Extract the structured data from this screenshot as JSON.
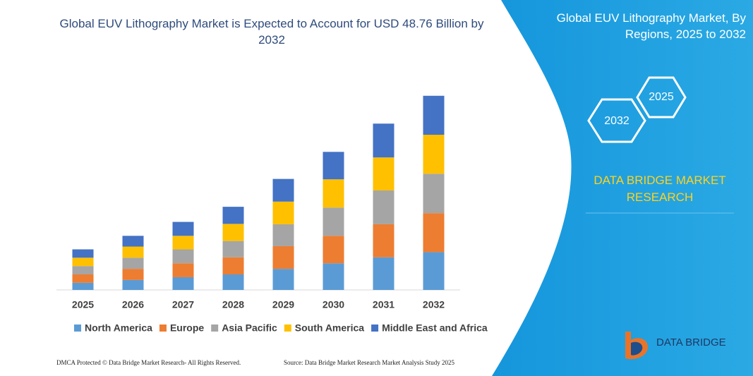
{
  "chart_data": {
    "type": "stacked-bar",
    "title": "Global EUV Lithography Market is Expected to Account for USD 48.76 Billion by 2032",
    "categories": [
      "2025",
      "2026",
      "2027",
      "2028",
      "2029",
      "2030",
      "2031",
      "2032"
    ],
    "series": [
      {
        "name": "North America",
        "color": "#5b9bd5",
        "values": [
          1.8,
          2.5,
          3.2,
          3.9,
          5.3,
          6.7,
          8.2,
          9.5
        ]
      },
      {
        "name": "Europe",
        "color": "#ed7d31",
        "values": [
          2.1,
          2.8,
          3.5,
          4.3,
          5.7,
          6.9,
          8.3,
          9.8
        ]
      },
      {
        "name": "Asia Pacific",
        "color": "#a5a5a5",
        "values": [
          2.1,
          2.8,
          3.5,
          4.1,
          5.5,
          7.1,
          8.5,
          9.9
        ]
      },
      {
        "name": "South America",
        "color": "#ffc000",
        "values": [
          2.1,
          2.8,
          3.4,
          4.3,
          5.7,
          7.1,
          8.3,
          9.8
        ]
      },
      {
        "name": "Middle East and Africa",
        "color": "#4472c4",
        "values": [
          2.1,
          2.7,
          3.5,
          4.3,
          5.7,
          6.9,
          8.5,
          9.8
        ]
      }
    ],
    "ylim": [
      0,
      50
    ],
    "legend": "bottom"
  },
  "panel": {
    "title": "Global EUV Lithography Market, By Regions, 2025 to 2032",
    "badges": [
      "2025",
      "2032"
    ],
    "brand": "DATA BRIDGE MARKET RESEARCH",
    "logo": "DATA BRIDGE"
  },
  "footer": {
    "left": "DMCA Protected © Data Bridge Market Research- All Rights Reserved.",
    "right": "Source: Data Bridge Market Research Market Analysis Study 2025"
  }
}
